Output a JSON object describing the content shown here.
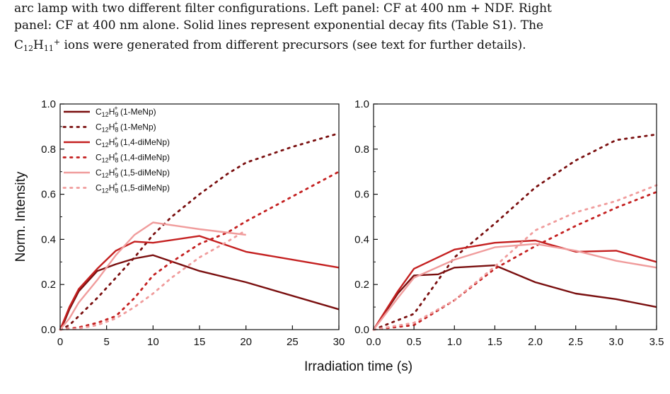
{
  "caption": {
    "line1": "arc lamp with two different filter configurations. Left panel: CF at 400 nm + NDF. Right",
    "line2": "panel: CF at 400 nm alone. Solid lines represent exponential decay fits (Table S1). The",
    "line3_ion_main": "C",
    "line3_ion_sub1": "12",
    "line3_ion_h": "H",
    "line3_ion_sub2": "11",
    "line3_ion_sup": "+",
    "line3_rest": " ions were generated from different precursors (see text for further details)."
  },
  "chart_data": [
    {
      "type": "line",
      "panel": "left",
      "ylabel": "Norm. Intensity",
      "xlabel": "Irradiation time (s)",
      "xlim": [
        0,
        30
      ],
      "ylim": [
        0,
        1.0
      ],
      "xticks": [
        "0",
        "5",
        "10",
        "15",
        "20",
        "25",
        "30"
      ],
      "yticks": [
        "0.0",
        "0.2",
        "0.4",
        "0.6",
        "0.8",
        "1.0"
      ],
      "legend": {
        "placement": "top-left",
        "entries": [
          {
            "ion": "C",
            "n": "12",
            "h": "H",
            "m": "9",
            "charge": "+",
            "precursor": " (1-MeNp)"
          },
          {
            "ion": "C",
            "n": "12",
            "h": "H",
            "m": "8",
            "charge": "+",
            "precursor": " (1-MeNp)"
          },
          {
            "ion": "C",
            "n": "12",
            "h": "H",
            "m": "9",
            "charge": "+",
            "precursor": " (1,4-diMeNp)"
          },
          {
            "ion": "C",
            "n": "12",
            "h": "H",
            "m": "8",
            "charge": "+",
            "precursor": " (1,4-diMeNp)"
          },
          {
            "ion": "C",
            "n": "12",
            "h": "H",
            "m": "9",
            "charge": "+",
            "precursor": " (1,5-diMeNp)"
          },
          {
            "ion": "C",
            "n": "12",
            "h": "H",
            "m": "8",
            "charge": "+",
            "precursor": " (1,5-diMeNp)"
          }
        ]
      },
      "series": [
        {
          "color": "#7a0f0f",
          "style": "solid",
          "x": [
            0,
            0.5,
            1,
            2,
            4,
            6,
            8,
            10,
            15,
            20,
            30
          ],
          "y": [
            0,
            0.04,
            0.09,
            0.17,
            0.26,
            0.29,
            0.315,
            0.33,
            0.26,
            0.21,
            0.09
          ]
        },
        {
          "color": "#7a0f0f",
          "style": "dotted",
          "x": [
            0,
            1,
            2,
            4,
            6,
            8,
            10,
            12,
            15,
            18,
            20,
            25,
            30
          ],
          "y": [
            0.0,
            0.02,
            0.06,
            0.14,
            0.23,
            0.32,
            0.42,
            0.5,
            0.6,
            0.69,
            0.74,
            0.81,
            0.87
          ]
        },
        {
          "color": "#c42020",
          "style": "solid",
          "x": [
            0,
            0.5,
            1,
            2,
            4,
            6,
            8,
            10,
            15,
            20,
            30
          ],
          "y": [
            0,
            0.05,
            0.1,
            0.18,
            0.27,
            0.35,
            0.39,
            0.385,
            0.415,
            0.345,
            0.275
          ]
        },
        {
          "color": "#c42020",
          "style": "dotted",
          "x": [
            0,
            2,
            4,
            6,
            8,
            10,
            12,
            15,
            18,
            20,
            25,
            30
          ],
          "y": [
            0.0,
            0.01,
            0.03,
            0.06,
            0.14,
            0.24,
            0.3,
            0.38,
            0.43,
            0.48,
            0.59,
            0.7
          ]
        },
        {
          "color": "#f09c9c",
          "style": "solid",
          "x": [
            0,
            1,
            2,
            4,
            6,
            8,
            10,
            15,
            20
          ],
          "y": [
            0,
            0.05,
            0.12,
            0.22,
            0.33,
            0.42,
            0.475,
            0.445,
            0.42
          ]
        },
        {
          "color": "#f09c9c",
          "style": "dotted",
          "x": [
            0,
            2,
            4,
            6,
            8,
            10,
            12,
            15,
            18,
            20
          ],
          "y": [
            0.0,
            0.005,
            0.02,
            0.05,
            0.1,
            0.16,
            0.23,
            0.32,
            0.39,
            0.44
          ]
        }
      ]
    },
    {
      "type": "line",
      "panel": "right",
      "xlabel": "Irradiation time (s)",
      "xlim": [
        0,
        3.5
      ],
      "ylim": [
        0,
        1.0
      ],
      "xticks": [
        "0.0",
        "0.5",
        "1.0",
        "1.5",
        "2.0",
        "2.5",
        "3.0",
        "3.5"
      ],
      "yticks": [
        "0.0",
        "0.2",
        "0.4",
        "0.6",
        "0.8",
        "1.0"
      ],
      "series": [
        {
          "color": "#7a0f0f",
          "style": "solid",
          "x": [
            0,
            0.3,
            0.5,
            0.8,
            1.0,
            1.5,
            2.0,
            2.5,
            3.0,
            3.5
          ],
          "y": [
            0,
            0.16,
            0.24,
            0.245,
            0.275,
            0.285,
            0.21,
            0.16,
            0.135,
            0.1
          ]
        },
        {
          "color": "#7a0f0f",
          "style": "dotted",
          "x": [
            0,
            0.5,
            1.0,
            1.5,
            2.0,
            2.5,
            3.0,
            3.5
          ],
          "y": [
            0.0,
            0.07,
            0.32,
            0.47,
            0.63,
            0.75,
            0.84,
            0.865
          ]
        },
        {
          "color": "#c42020",
          "style": "solid",
          "x": [
            0,
            0.3,
            0.5,
            1.0,
            1.5,
            2.0,
            2.5,
            3.0,
            3.5
          ],
          "y": [
            0,
            0.17,
            0.27,
            0.355,
            0.385,
            0.395,
            0.345,
            0.35,
            0.3
          ]
        },
        {
          "color": "#c42020",
          "style": "dotted",
          "x": [
            0,
            0.5,
            1.0,
            1.5,
            2.0,
            2.5,
            3.0,
            3.5
          ],
          "y": [
            0.0,
            0.02,
            0.13,
            0.27,
            0.37,
            0.46,
            0.54,
            0.61
          ]
        },
        {
          "color": "#f09c9c",
          "style": "solid",
          "x": [
            0,
            0.3,
            0.5,
            1.0,
            1.5,
            2.0,
            2.5,
            3.0,
            3.5
          ],
          "y": [
            0,
            0.14,
            0.23,
            0.31,
            0.365,
            0.38,
            0.35,
            0.305,
            0.275
          ]
        },
        {
          "color": "#f09c9c",
          "style": "dotted",
          "x": [
            0,
            0.5,
            1.0,
            1.5,
            2.0,
            2.5,
            3.0,
            3.5
          ],
          "y": [
            0.0,
            0.03,
            0.13,
            0.28,
            0.44,
            0.52,
            0.57,
            0.64
          ]
        }
      ]
    }
  ]
}
